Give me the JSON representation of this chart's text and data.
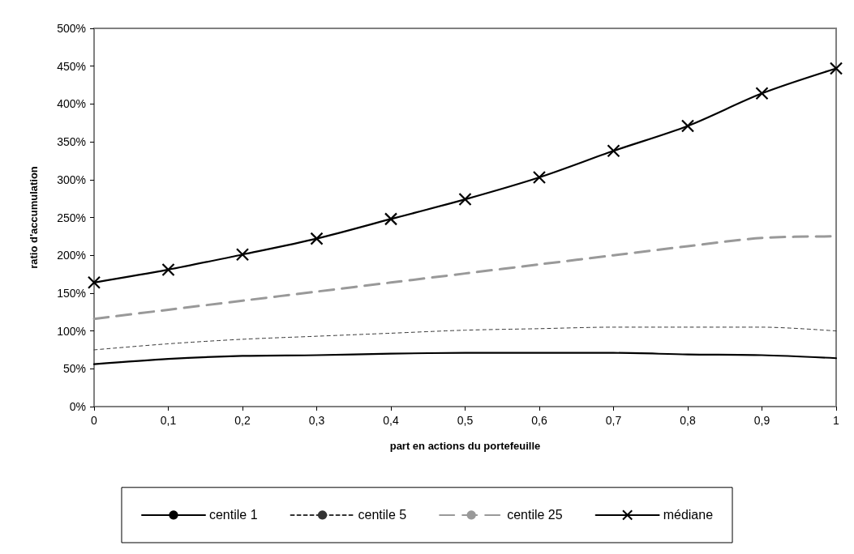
{
  "chart_data": {
    "type": "line",
    "xlabel": "part en actions du portefeuille",
    "ylabel": "ratio d'accumulation",
    "x": [
      0,
      0.1,
      0.2,
      0.3,
      0.4,
      0.5,
      0.6,
      0.7,
      0.8,
      0.9,
      1
    ],
    "series": [
      {
        "name": "centile 1",
        "color": "#000000",
        "line_style": "solid",
        "marker": "none",
        "values": [
          56,
          63,
          67,
          68,
          70,
          71,
          71,
          71,
          69,
          68,
          64
        ]
      },
      {
        "name": "centile 5",
        "color": "#333333",
        "line_style": "dotted",
        "marker": "none",
        "values": [
          75,
          83,
          89,
          93,
          97,
          101,
          103,
          105,
          105,
          105,
          100
        ]
      },
      {
        "name": "centile 25",
        "color": "#999999",
        "line_style": "dashed",
        "marker": "none",
        "values": [
          116,
          128,
          140,
          152,
          164,
          176,
          188,
          200,
          212,
          223,
          225
        ]
      },
      {
        "name": "médiane",
        "color": "#000000",
        "line_style": "solid",
        "marker": "cross",
        "values": [
          164,
          181,
          201,
          222,
          248,
          274,
          303,
          338,
          371,
          414,
          447
        ]
      }
    ],
    "xlim": [
      0,
      1
    ],
    "xticks": [
      0,
      {
        "value": 0.1,
        "label": "0,1"
      },
      {
        "value": 0.2,
        "label": "0,2"
      },
      {
        "value": 0.3,
        "label": "0,3"
      },
      {
        "value": 0.4,
        "label": "0,4"
      },
      {
        "value": 0.5,
        "label": "0,5"
      },
      {
        "value": 0.6,
        "label": "0,6"
      },
      {
        "value": 0.7,
        "label": "0,7"
      },
      {
        "value": 0.8,
        "label": "0,8"
      },
      {
        "value": 0.9,
        "label": "0,9"
      },
      1
    ],
    "ylim": [
      0,
      500
    ],
    "yticks": [
      {
        "value": 0,
        "label": "0%"
      },
      {
        "value": 50,
        "label": "50%"
      },
      {
        "value": 100,
        "label": "100%"
      },
      {
        "value": 150,
        "label": "150%"
      },
      {
        "value": 200,
        "label": "200%"
      },
      {
        "value": 250,
        "label": "250%"
      },
      {
        "value": 300,
        "label": "300%"
      },
      {
        "value": 350,
        "label": "350%"
      },
      {
        "value": 400,
        "label": "400%"
      },
      {
        "value": 450,
        "label": "450%"
      },
      {
        "value": 500,
        "label": "500%"
      }
    ],
    "grid": false,
    "legend": "bottom"
  }
}
